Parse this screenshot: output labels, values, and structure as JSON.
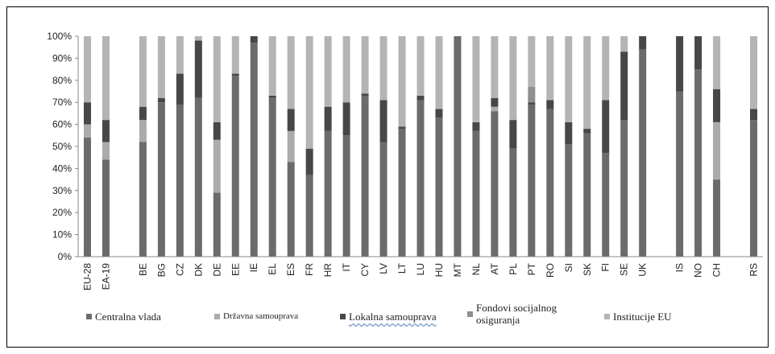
{
  "chart_data": {
    "type": "bar",
    "stacked": true,
    "y_tick_labels": [
      "0%",
      "10%",
      "20%",
      "30%",
      "40%",
      "50%",
      "60%",
      "70%",
      "80%",
      "90%",
      "100%"
    ],
    "ylim": [
      0,
      100
    ],
    "grid": false,
    "legend_position": "bottom",
    "categories": [
      "EU-28",
      "EA-19",
      "",
      "BE",
      "BG",
      "CZ",
      "DK",
      "DE",
      "EE",
      "IE",
      "EL",
      "ES",
      "FR",
      "HR",
      "IT",
      "CY",
      "LV",
      "LT",
      "LU",
      "HU",
      "MT",
      "NL",
      "AT",
      "PL",
      "PT",
      "RO",
      "SI",
      "SK",
      "FI",
      "SE",
      "UK",
      "",
      "IS",
      "NO",
      "CH",
      "",
      "RS"
    ],
    "series": [
      {
        "name": "Centralna vlada",
        "color": "#6b6b6b",
        "values": [
          54,
          44,
          null,
          52,
          70,
          69,
          72,
          29,
          82,
          97,
          72,
          43,
          37,
          57,
          55,
          73,
          52,
          58,
          71,
          63,
          100,
          57,
          66,
          49,
          69,
          67,
          51,
          56,
          47,
          62,
          94,
          null,
          75,
          85,
          35,
          null,
          62
        ]
      },
      {
        "name": "Državna samouprava",
        "color": "#ababab",
        "values": [
          6,
          8,
          null,
          10,
          0,
          0,
          0,
          24,
          0,
          0,
          0,
          14,
          0,
          0,
          0,
          0,
          0,
          0,
          0,
          0,
          0,
          0,
          2,
          0,
          0,
          0,
          0,
          0,
          0,
          0,
          0,
          null,
          0,
          0,
          26,
          null,
          0
        ]
      },
      {
        "name": "Lokalna samouprava",
        "color": "#474747",
        "values": [
          10,
          10,
          null,
          6,
          2,
          14,
          26,
          8,
          1,
          3,
          1,
          10,
          12,
          11,
          15,
          1,
          19,
          1,
          2,
          4,
          0,
          4,
          4,
          13,
          1,
          4,
          10,
          2,
          24,
          31,
          6,
          null,
          25,
          15,
          15,
          null,
          5
        ]
      },
      {
        "name": "Fondovi socijalnog osiguranja",
        "color": "#8f8f8f",
        "values": [
          0,
          0,
          null,
          0,
          0,
          0,
          0,
          0,
          0,
          0,
          0,
          0,
          0,
          0,
          0,
          0,
          0,
          0,
          0,
          0,
          0,
          0,
          0,
          0,
          7,
          0,
          0,
          0,
          0,
          0,
          0,
          null,
          0,
          0,
          0,
          null,
          0
        ]
      },
      {
        "name": "Institucije EU",
        "color": "#b4b4b4",
        "values": [
          30,
          38,
          null,
          32,
          28,
          17,
          2,
          39,
          17,
          0,
          27,
          33,
          51,
          32,
          30,
          26,
          29,
          41,
          27,
          33,
          0,
          39,
          28,
          38,
          23,
          29,
          39,
          42,
          29,
          7,
          0,
          null,
          0,
          0,
          24,
          null,
          33
        ]
      }
    ]
  },
  "legend": [
    {
      "label": "Centralna vlada",
      "color": "#6b6b6b"
    },
    {
      "label": "Državna samouprava",
      "color": "#ababab"
    },
    {
      "label": "Lokalna  samouprava",
      "color": "#474747"
    },
    {
      "label": "Fondovi socijalnog osiguranja",
      "color": "#8f8f8f"
    },
    {
      "label": "Institucije EU",
      "color": "#b4b4b4"
    }
  ]
}
